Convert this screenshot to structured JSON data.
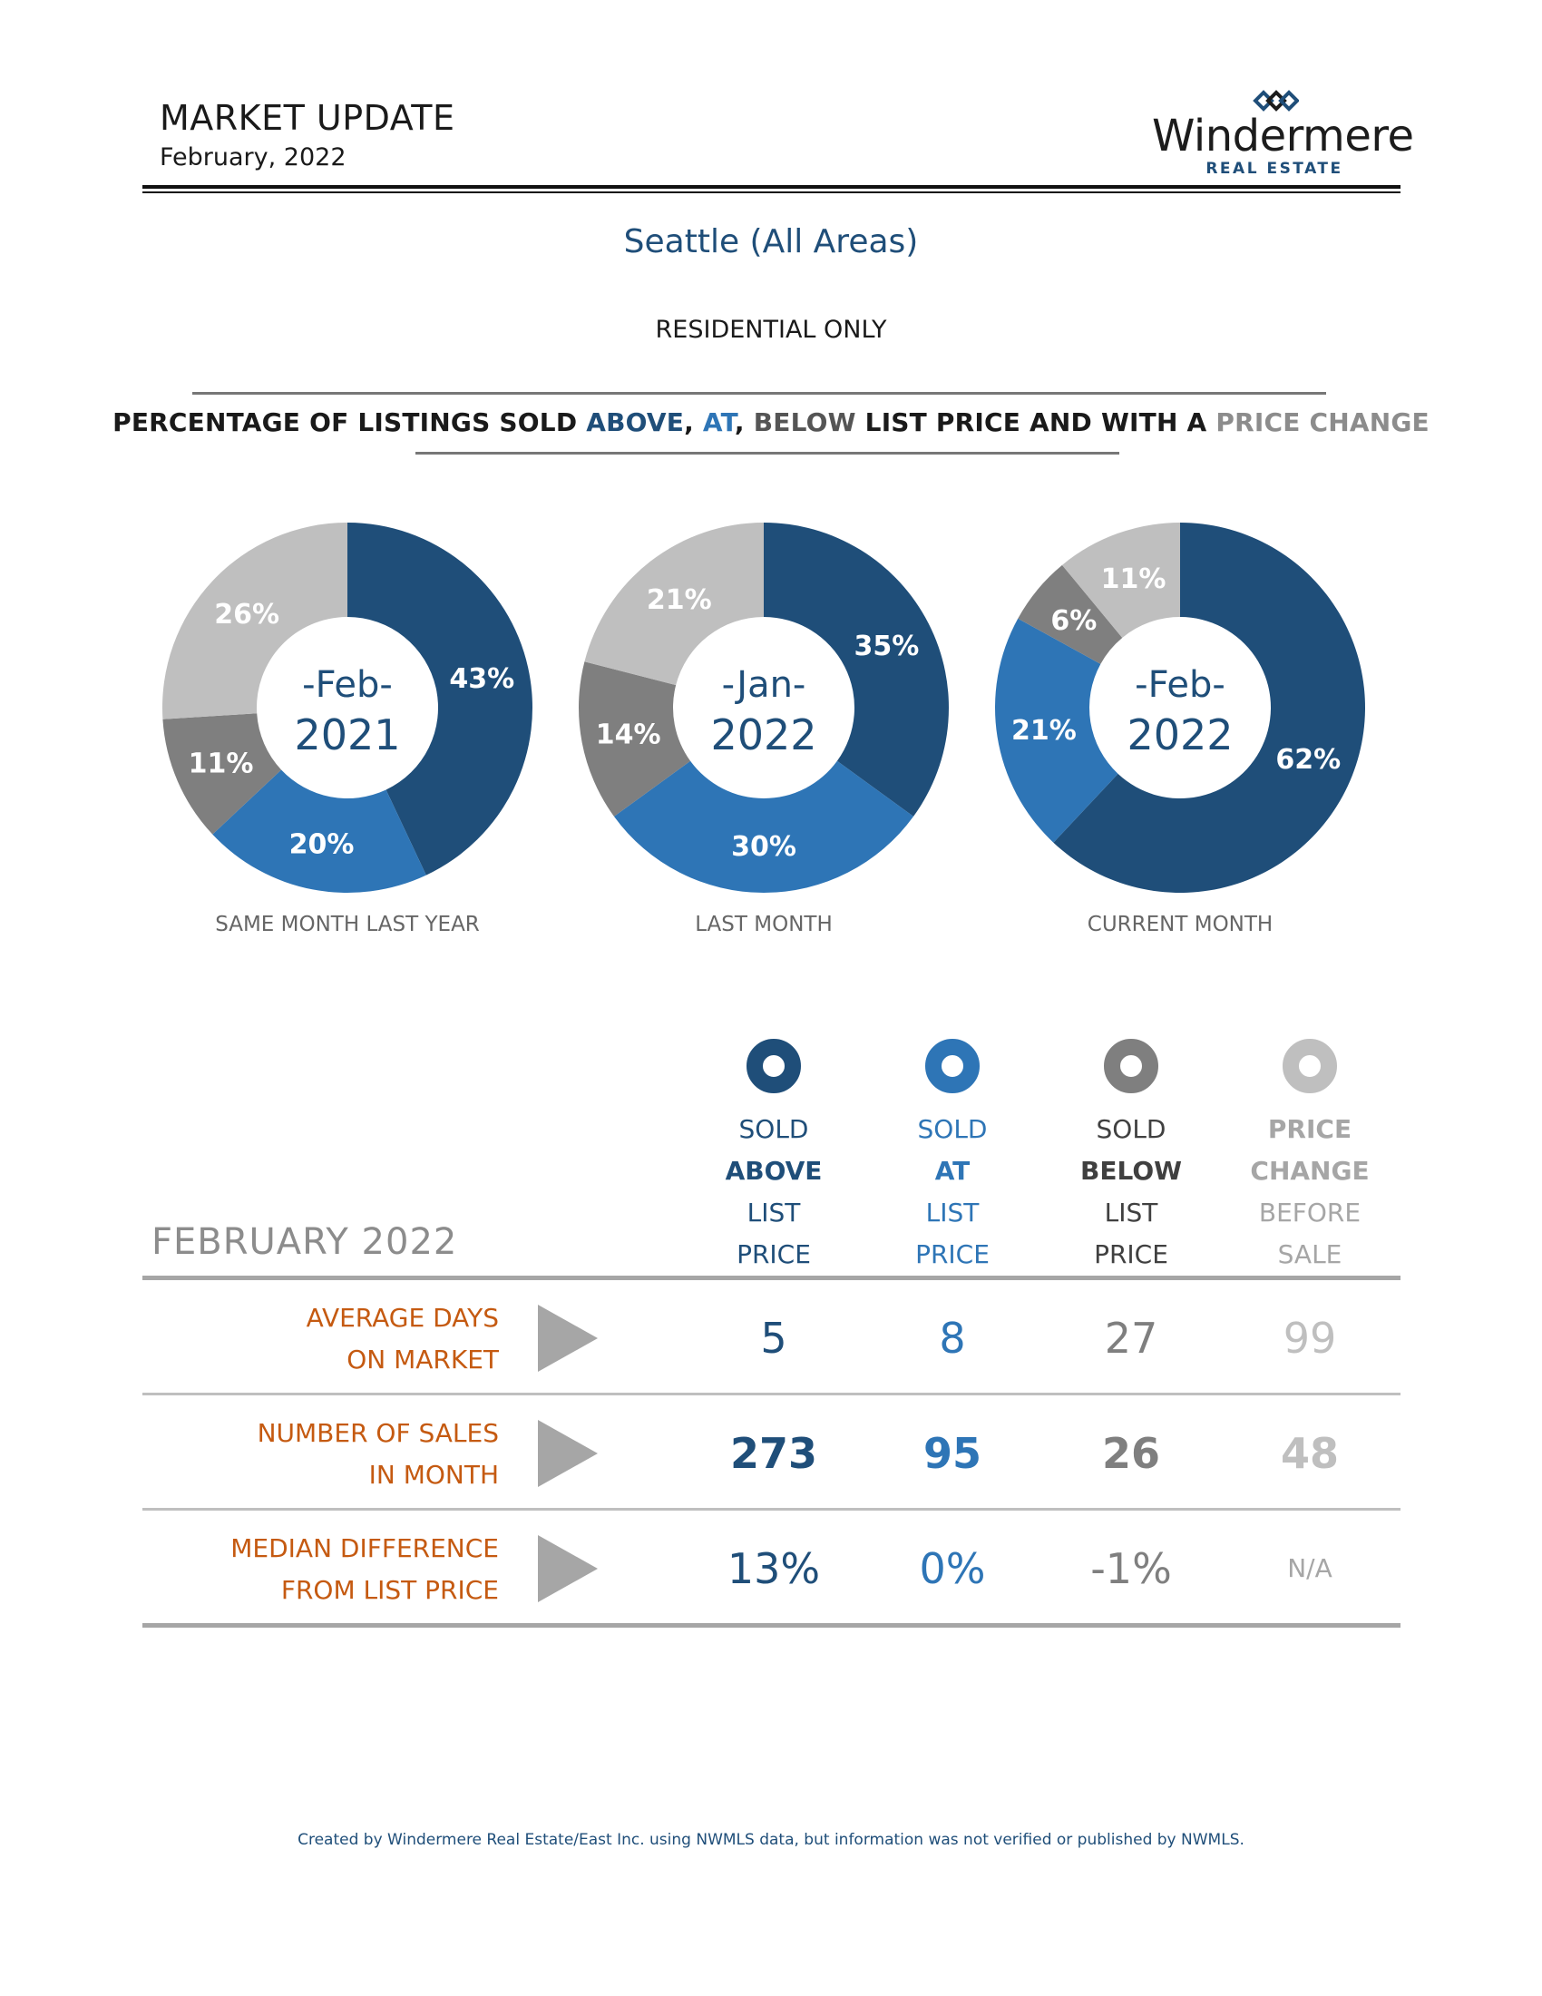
{
  "header": {
    "title": "MARKET UPDATE",
    "date": "February, 2022"
  },
  "logo": {
    "word": "Windermere",
    "sub": "REAL ESTATE",
    "icon": "windermere-w-mark"
  },
  "area_title": "Seattle (All Areas)",
  "scope": "RESIDENTIAL ONLY",
  "chart_heading": {
    "part1": "PERCENTAGE OF LISTINGS SOLD ",
    "above": "ABOVE",
    "sep1": ", ",
    "at": "AT",
    "sep2": ", ",
    "below": "BELOW",
    "part2": " LIST PRICE AND WITH A ",
    "change": "PRICE CHANGE"
  },
  "colors": {
    "above": "#1f4e79",
    "at": "#2e75b6",
    "below": "#7f7f7f",
    "change": "#bfbfbf",
    "label_orange": "#c55a11"
  },
  "chart_data": [
    {
      "type": "pie",
      "title": "SAME MONTH LAST YEAR",
      "center_month": "-Feb-",
      "center_year": "2021",
      "categories": [
        "Sold Above",
        "Sold At",
        "Sold Below",
        "Price Change"
      ],
      "values": [
        43,
        20,
        11,
        26
      ],
      "labels": [
        "43%",
        "20%",
        "11%",
        "26%"
      ]
    },
    {
      "type": "pie",
      "title": "LAST MONTH",
      "center_month": "-Jan-",
      "center_year": "2022",
      "categories": [
        "Sold Above",
        "Sold At",
        "Sold Below",
        "Price Change"
      ],
      "values": [
        35,
        30,
        14,
        21
      ],
      "labels": [
        "35%",
        "30%",
        "14%",
        "21%"
      ]
    },
    {
      "type": "pie",
      "title": "CURRENT MONTH",
      "center_month": "-Feb-",
      "center_year": "2022",
      "categories": [
        "Sold Above",
        "Sold At",
        "Sold Below",
        "Price Change"
      ],
      "values": [
        62,
        21,
        6,
        11
      ],
      "labels": [
        "62%",
        "21%",
        "6%",
        "11%"
      ]
    }
  ],
  "table": {
    "section_label": "FEBRUARY 2022",
    "columns": [
      {
        "line1": "SOLD",
        "line2": "ABOVE",
        "line3": "LIST",
        "line4": "PRICE",
        "icon": "above-ring-icon"
      },
      {
        "line1": "SOLD",
        "line2": "AT",
        "line3": "LIST",
        "line4": "PRICE",
        "icon": "at-ring-icon"
      },
      {
        "line1": "SOLD",
        "line2": "BELOW",
        "line3": "LIST",
        "line4": "PRICE",
        "icon": "below-ring-icon"
      },
      {
        "line1": "PRICE",
        "line2": "CHANGE",
        "line3": "BEFORE",
        "line4": "SALE",
        "icon": "change-ring-icon"
      }
    ],
    "rows": [
      {
        "label1": "AVERAGE DAYS",
        "label2": "ON MARKET",
        "values": [
          "5",
          "8",
          "27",
          "99"
        ]
      },
      {
        "label1": "NUMBER OF SALES",
        "label2": "IN MONTH",
        "values": [
          "273",
          "95",
          "26",
          "48"
        ]
      },
      {
        "label1": "MEDIAN DIFFERENCE",
        "label2": "FROM LIST PRICE",
        "values": [
          "13%",
          "0%",
          "-1%",
          "N/A"
        ]
      }
    ]
  },
  "footer": "Created by Windermere Real Estate/East Inc. using NWMLS data, but information was not verified or published by NWMLS."
}
